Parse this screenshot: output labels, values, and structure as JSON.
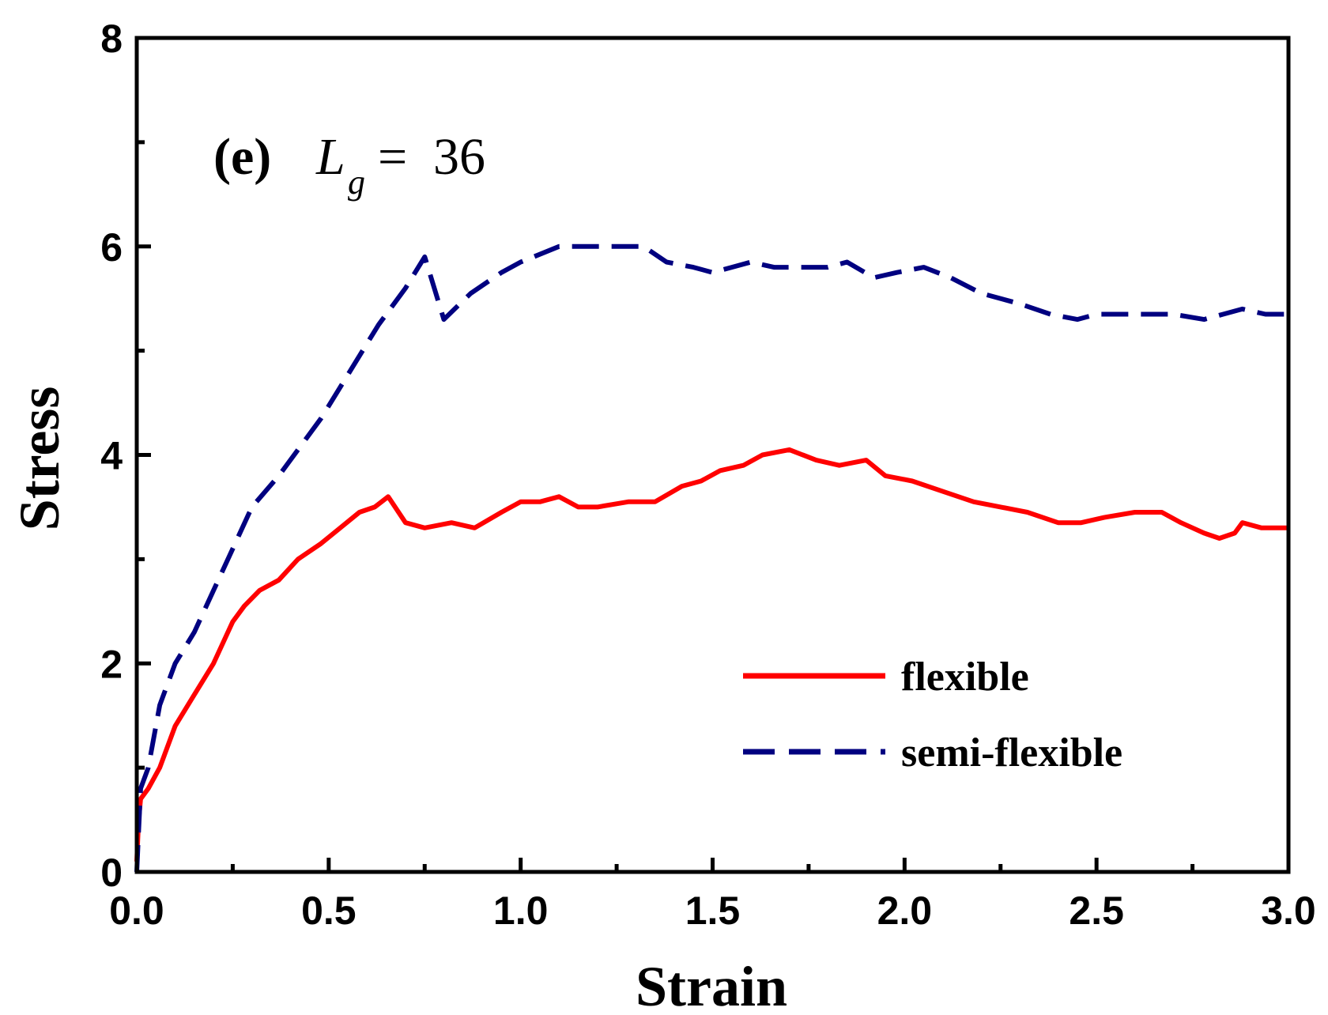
{
  "chart_data": {
    "type": "line",
    "title": "",
    "annotation": {
      "panel": "(e)",
      "variable": "L",
      "subscript": "g",
      "equals": "=",
      "value": "36"
    },
    "xlabel": "Strain",
    "ylabel": "Stress",
    "xlim": [
      0,
      3
    ],
    "ylim": [
      0,
      8
    ],
    "x_ticks": [
      0,
      0.5,
      1.0,
      1.5,
      2.0,
      2.5,
      3.0
    ],
    "x_tick_labels": [
      "0.0",
      "0.5",
      "1.0",
      "1.5",
      "2.0",
      "2.5",
      "3.0"
    ],
    "y_ticks": [
      0,
      2,
      4,
      6,
      8
    ],
    "y_tick_labels": [
      "0",
      "2",
      "4",
      "6",
      "8"
    ],
    "grid": false,
    "legend_position": "lower-right",
    "series": [
      {
        "name": "flexible",
        "color": "#ff0000",
        "style": "solid",
        "x": [
          0,
          0.005,
          0.01,
          0.03,
          0.06,
          0.1,
          0.15,
          0.2,
          0.25,
          0.28,
          0.32,
          0.37,
          0.42,
          0.48,
          0.53,
          0.58,
          0.62,
          0.655,
          0.7,
          0.75,
          0.82,
          0.88,
          0.95,
          1.0,
          1.05,
          1.1,
          1.15,
          1.2,
          1.28,
          1.35,
          1.42,
          1.47,
          1.52,
          1.58,
          1.63,
          1.7,
          1.77,
          1.83,
          1.9,
          1.95,
          2.02,
          2.1,
          2.18,
          2.25,
          2.32,
          2.4,
          2.46,
          2.52,
          2.6,
          2.67,
          2.72,
          2.78,
          2.82,
          2.86,
          2.88,
          2.93,
          3.0
        ],
        "y": [
          0.1,
          0.5,
          0.7,
          0.8,
          1.0,
          1.4,
          1.7,
          2.0,
          2.4,
          2.55,
          2.7,
          2.8,
          3.0,
          3.15,
          3.3,
          3.45,
          3.5,
          3.6,
          3.35,
          3.3,
          3.35,
          3.3,
          3.45,
          3.55,
          3.55,
          3.6,
          3.5,
          3.5,
          3.55,
          3.55,
          3.7,
          3.75,
          3.85,
          3.9,
          4.0,
          4.05,
          3.95,
          3.9,
          3.95,
          3.8,
          3.75,
          3.65,
          3.55,
          3.5,
          3.45,
          3.35,
          3.35,
          3.4,
          3.45,
          3.45,
          3.35,
          3.25,
          3.2,
          3.25,
          3.35,
          3.3,
          3.3
        ]
      },
      {
        "name": "semi-flexible",
        "color": "#000080",
        "style": "dashed",
        "x": [
          0,
          0.005,
          0.01,
          0.03,
          0.06,
          0.1,
          0.15,
          0.2,
          0.25,
          0.3,
          0.37,
          0.42,
          0.48,
          0.53,
          0.58,
          0.63,
          0.7,
          0.75,
          0.8,
          0.87,
          0.95,
          1.0,
          1.1,
          1.18,
          1.25,
          1.32,
          1.38,
          1.45,
          1.5,
          1.55,
          1.6,
          1.66,
          1.72,
          1.8,
          1.85,
          1.92,
          1.98,
          2.05,
          2.12,
          2.2,
          2.3,
          2.38,
          2.45,
          2.5,
          2.6,
          2.7,
          2.78,
          2.83,
          2.88,
          2.94,
          3.0
        ],
        "y": [
          0.0,
          0.4,
          0.8,
          1.0,
          1.6,
          2.0,
          2.3,
          2.7,
          3.1,
          3.5,
          3.8,
          4.05,
          4.35,
          4.65,
          4.95,
          5.25,
          5.6,
          5.9,
          5.3,
          5.55,
          5.75,
          5.85,
          6.0,
          6.0,
          6.0,
          6.0,
          5.85,
          5.8,
          5.75,
          5.8,
          5.85,
          5.8,
          5.8,
          5.8,
          5.85,
          5.7,
          5.75,
          5.8,
          5.7,
          5.55,
          5.45,
          5.35,
          5.3,
          5.35,
          5.35,
          5.35,
          5.3,
          5.35,
          5.4,
          5.35,
          5.35
        ]
      }
    ]
  }
}
